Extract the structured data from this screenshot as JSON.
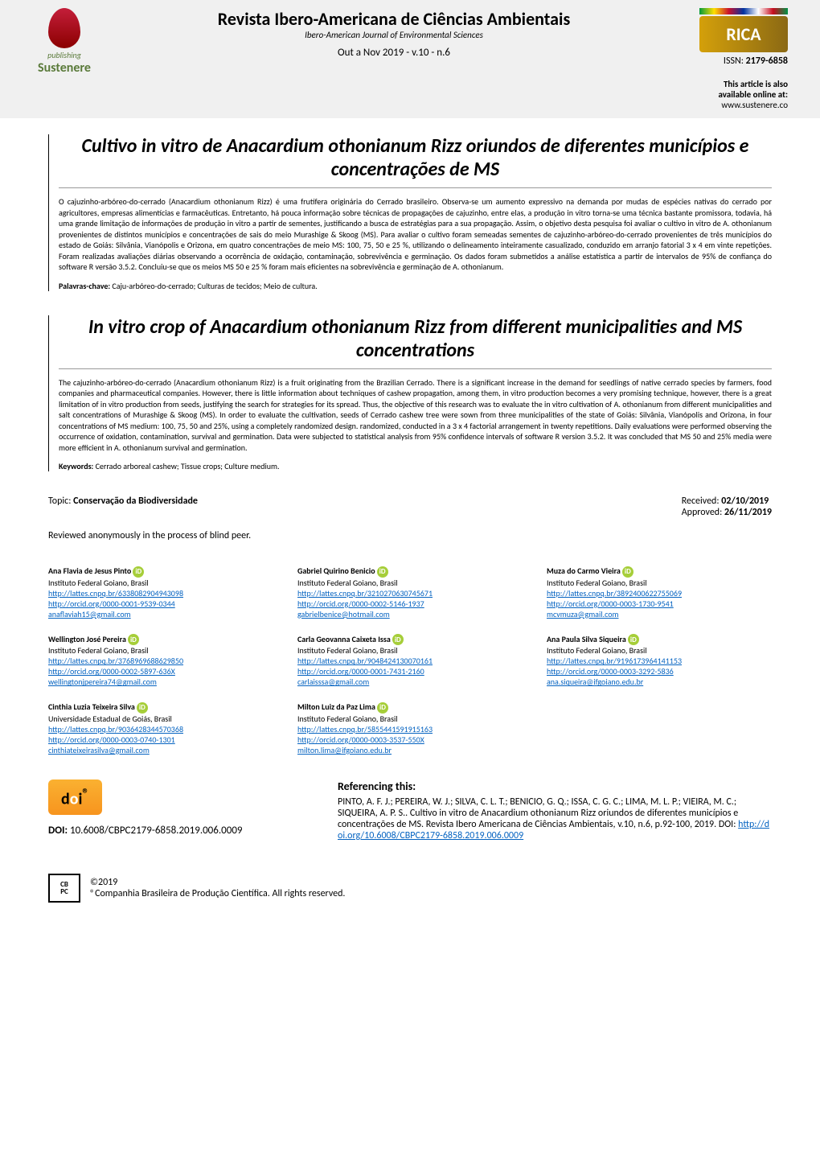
{
  "header": {
    "logo_left": {
      "publishing": "publishing",
      "brand": "Sustenere"
    },
    "journal_title": "Revista Ibero-Americana de Ciências Ambientais",
    "journal_subtitle": "Ibero-American Journal of Environmental Sciences",
    "issue": "Out a Nov 2019 - v.10 - n.6",
    "rica": "RICA",
    "issn_label": "ISSN:",
    "issn_value": "2179-6858",
    "online_note": "This article is also available online at:",
    "online_url": "www.sustenere.co"
  },
  "colors": {
    "header_bg": "#f0f0f0",
    "link": "#0563c1",
    "orcid": "#a6ce39",
    "doi_badge": "#fab131",
    "sustenere_green": "#5a7a3a",
    "flame_red": "#c41e3a"
  },
  "article_pt": {
    "title": "Cultivo in vitro de Anacardium othonianum Rizz oriundos de diferentes municípios e concentrações de MS",
    "abstract": "O cajuzinho-arbóreo-do-cerrado (Anacardium othonianum Rizz) é uma frutífera originária do Cerrado brasileiro. Observa-se um aumento expressivo na demanda por mudas de espécies nativas do cerrado por agricultores, empresas alimentícias e farmacêuticas. Entretanto, há pouca informação sobre técnicas de propagações de cajuzinho, entre elas, a produção in vitro torna-se uma técnica bastante promissora, todavia, há uma grande limitação de informações de produção in vitro a partir de sementes, justificando a busca de estratégias para a sua propagação. Assim, o objetivo desta pesquisa foi avaliar o cultivo in vitro de A. othonianum provenientes de distintos municípios e concentrações de sais do meio Murashige & Skoog (MS). Para avaliar o cultivo foram semeadas sementes de cajuzinho-arbóreo-do-cerrado provenientes de três municípios do estado de Goiás: Silvânia, Vianópolis e Orizona, em quatro concentrações de meio MS: 100, 75, 50 e 25 %, utilizando o delineamento inteiramente casualizado, conduzido em arranjo fatorial 3 x 4 em vinte repetições. Foram realizadas avaliações diárias observando a ocorrência de oxidação, contaminação, sobrevivência e germinação. Os dados foram submetidos a análise estatística a partir de intervalos de 95% de confiança do software R versão 3.5.2. Concluiu-se que os meios MS 50 e 25 % foram mais eficientes na sobrevivência e germinação de A. othonianum.",
    "keywords_label": "Palavras-chave:",
    "keywords": "Caju-arbóreo-do-cerrado; Culturas de tecidos; Meio de cultura."
  },
  "article_en": {
    "title": "In vitro crop of Anacardium othonianum Rizz from different municipalities and MS concentrations",
    "abstract": "The cajuzinho-arbóreo-do-cerrado (Anacardium othonianum Rizz) is a fruit originating from the Brazilian Cerrado. There is a significant increase in the demand for seedlings of native cerrado species by farmers, food companies and pharmaceutical companies. However, there is little information about techniques of cashew propagation, among them, in vitro production becomes a very promising technique, however, there is a great limitation of in vitro production from seeds, justifying the search for strategies for its spread. Thus, the objective of this research was to evaluate the in vitro cultivation of A. othonianum from different municipalities and salt concentrations of Murashige & Skoog (MS). In order to evaluate the cultivation, seeds of Cerrado cashew tree were sown from three municipalities of the state of Goiás: Silvânia, Vianópolis and Orizona, in four concentrations of MS medium: 100, 75, 50 and 25%, using a completely randomized design. randomized, conducted in a 3 x 4 factorial arrangement in twenty repetitions. Daily evaluations were performed observing the occurrence of oxidation, contamination, survival and germination. Data were subjected to statistical analysis from 95% confidence intervals of software R version 3.5.2. It was concluded that MS 50 and 25% media were more efficient in A. othonianum survival and germination.",
    "keywords_label": "Keywords:",
    "keywords": "Cerrado arboreal cashew; Tissue crops; Culture medium."
  },
  "meta": {
    "topic_label": "Topic:",
    "topic_value": "Conservação da Biodiversidade",
    "received_label": "Received:",
    "received_value": "02/10/2019",
    "approved_label": "Approved:",
    "approved_value": "26/11/2019",
    "review_note": "Reviewed anonymously in the process of blind peer."
  },
  "authors": [
    {
      "name": "Ana Flavia de Jesus Pinto",
      "affil": "Instituto Federal Goiano, Brasil",
      "lattes": "http://lattes.cnpq.br/6338082904943098",
      "orcid": "http://orcid.org/0000-0001-9539-0344",
      "email": "anaflaviah15@gmail.com"
    },
    {
      "name": "Gabriel Quirino Benicio",
      "affil": "Instituto Federal Goiano, Brasil",
      "lattes": "http://lattes.cnpq.br/3210270630745671",
      "orcid": "http://orcid.org/0000-0002-5146-1937",
      "email": "gabrielbenice@hotmail.com"
    },
    {
      "name": "Muza do Carmo Vieira",
      "affil": "Instituto Federal Goiano, Brasil",
      "lattes": "http://lattes.cnpq.br/3892400622755069",
      "orcid": "http://orcid.org/0000-0003-1730-9541",
      "email": "mcvmuza@gmail.com"
    },
    {
      "name": "Wellington José Pereira",
      "affil": "Instituto Federal Goiano, Brasil",
      "lattes": "http://lattes.cnpq.br/3768969688629850",
      "orcid": "http://orcid.org/0000-0002-5897-636X",
      "email": "wellingtonjpereira74@gmail.com"
    },
    {
      "name": "Carla Geovanna Caixeta Issa",
      "affil": "Instituto Federal Goiano, Brasil",
      "lattes": "http://lattes.cnpq.br/9048424130070161",
      "orcid": "http://orcid.org/0000-0001-7431-2160",
      "email": "carlaisssa@gmail.com"
    },
    {
      "name": "Ana Paula Silva Siqueira",
      "affil": "Instituto Federal Goiano, Brasil",
      "lattes": "http://lattes.cnpq.br/9196173964141153",
      "orcid": "http://orcid.org/0000-0003-3292-5836",
      "email": "ana.siqueira@ifgoiano.edu.br"
    },
    {
      "name": "Cinthia Luzia Teixeira Silva",
      "affil": "Universidade Estadual de Goiás, Brasil",
      "lattes": "http://lattes.cnpq.br/9036428344570368",
      "orcid": "http://orcid.org/0000-0003-0740-1301",
      "email": "cinthiateixeirasilva@gmail.com"
    },
    {
      "name": "Milton Luiz da Paz Lima",
      "affil": "Instituto Federal Goiano, Brasil",
      "lattes": "http://lattes.cnpq.br/5855441591915163",
      "orcid": "http://orcid.org/0000-0003-3537-550X",
      "email": "milton.lima@ifgoiano.edu.br"
    }
  ],
  "doi": {
    "badge_text_d": "d",
    "badge_text_o": "o",
    "badge_text_i": "i",
    "label": "DOI:",
    "value": "10.6008/CBPC2179-6858.2019.006.0009"
  },
  "citation": {
    "heading": "Referencing this:",
    "text": "PINTO, A. F. J.; PEREIRA, W. J.; SILVA, C. L. T.; BENICIO, G. Q.; ISSA, C. G. C.; LIMA, M. L. P.; VIEIRA, M. C.; SIQUEIRA, A. P. S.. Cultivo in vitro de Anacardium othonianum Rizz oriundos de diferentes municípios e concentrações de MS. Revista Ibero Americana de Ciências Ambientais, v.10, n.6, p.92-100, 2019. DOI:",
    "doi_link": "http://doi.org/10.6008/CBPC2179-6858.2019.006.0009"
  },
  "copyright": {
    "cbpc1": "CB",
    "cbpc2": "PC",
    "year": "©2019",
    "text": "®Companhia Brasileira de Produção Científica. All rights reserved."
  }
}
